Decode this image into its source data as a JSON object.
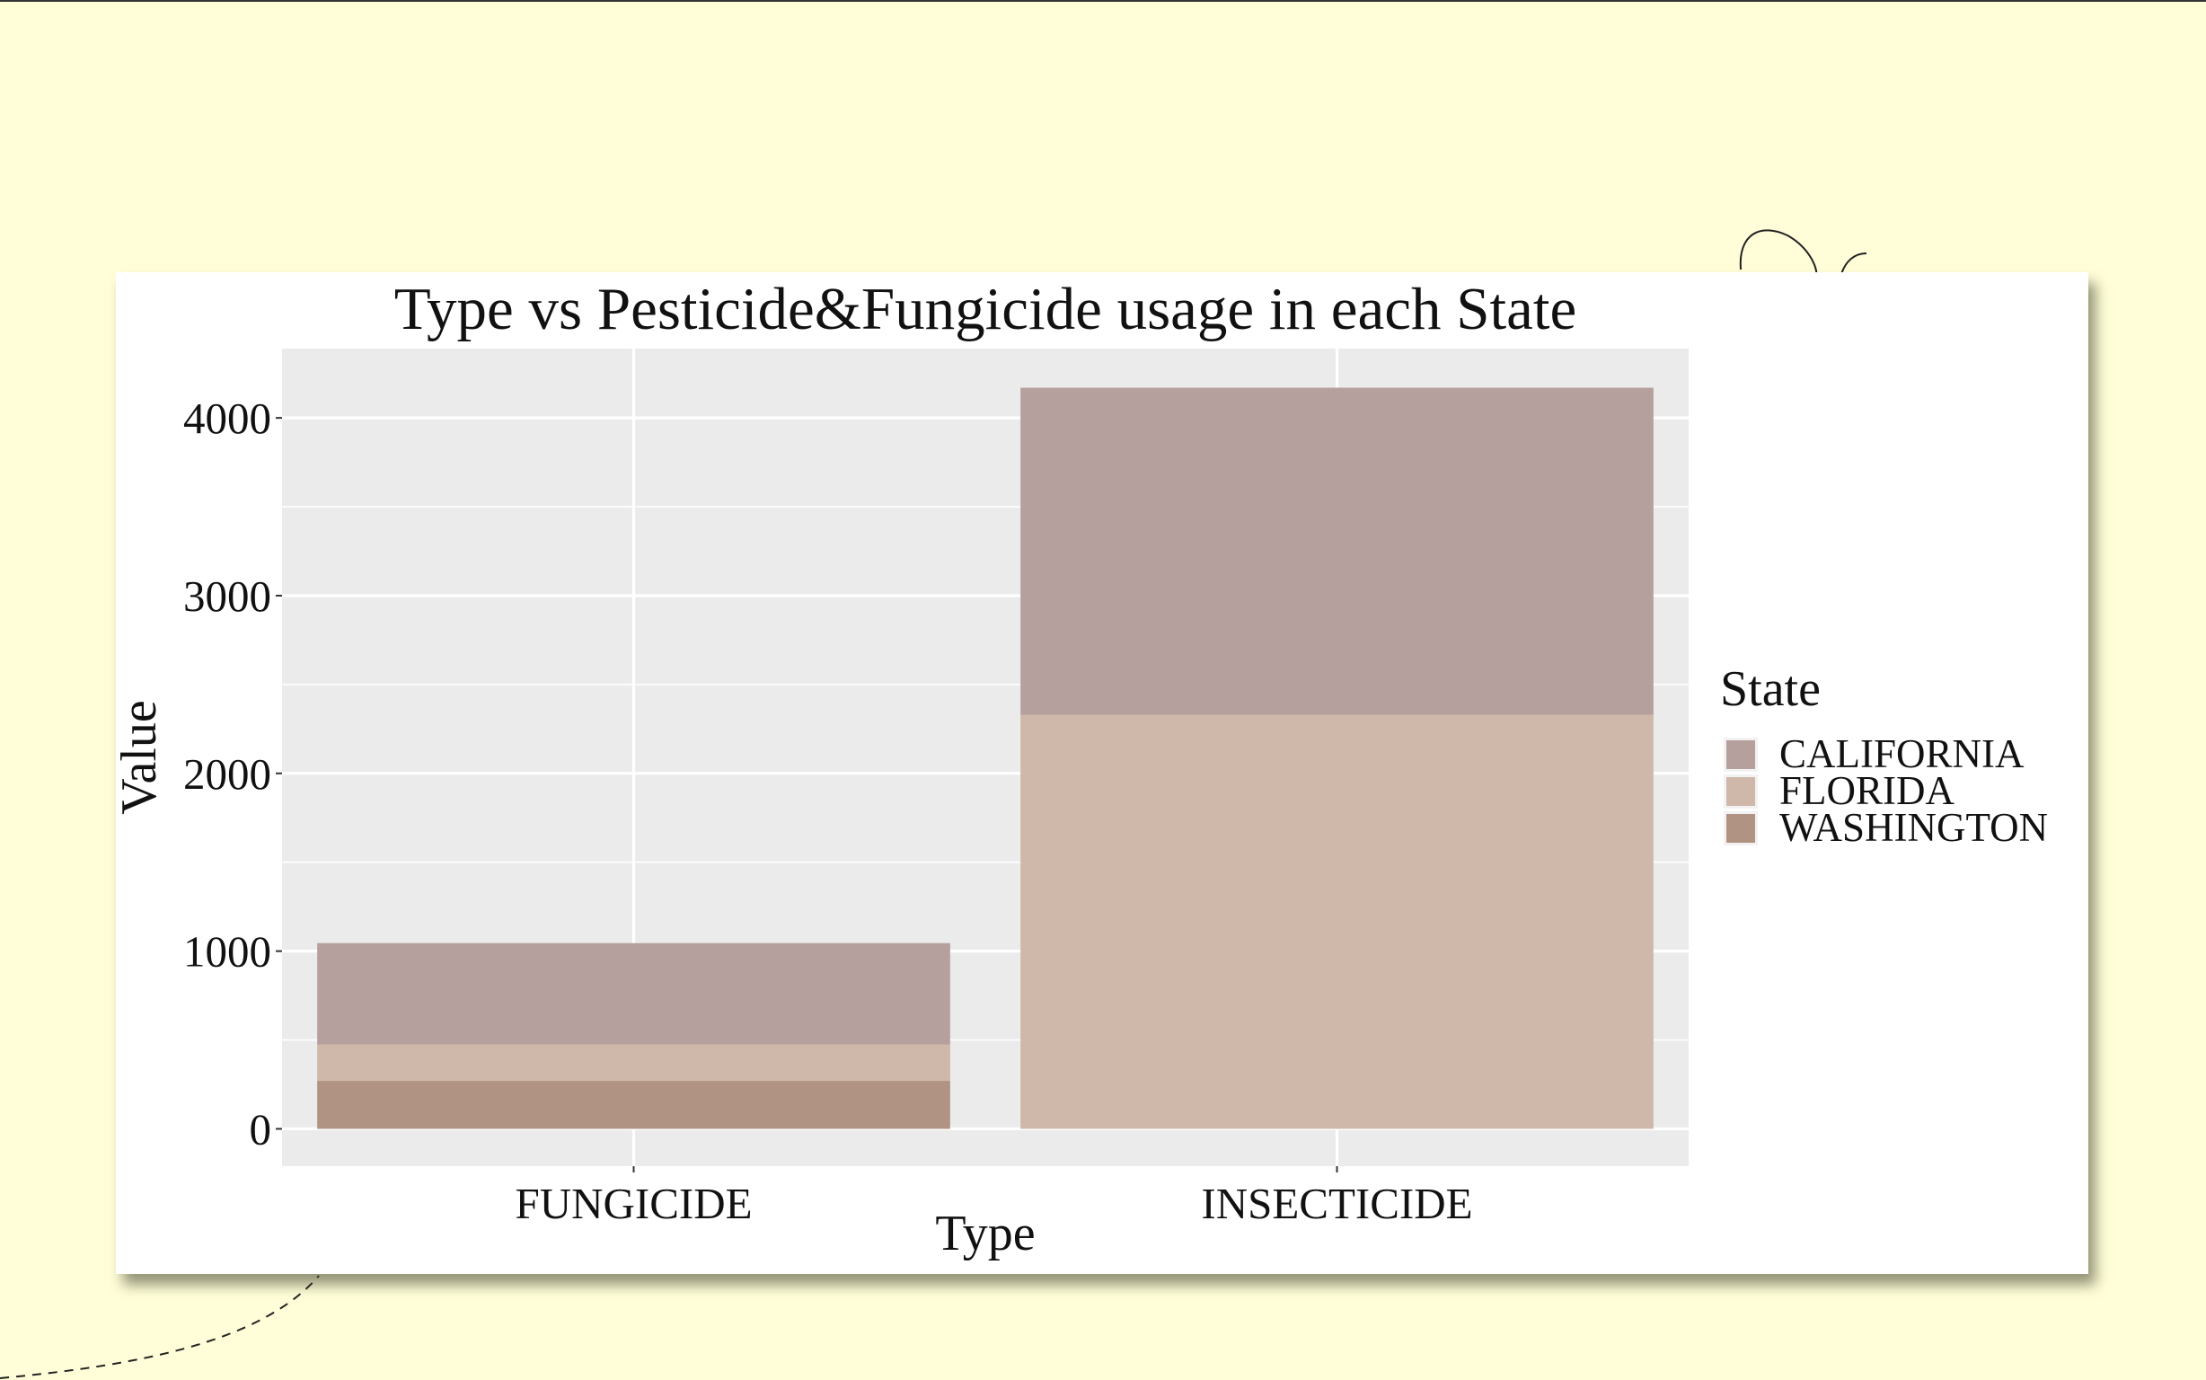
{
  "colors": {
    "background": "#fffed8",
    "panel": "#ebebeb",
    "grid": "#ffffff",
    "CALIFORNIA": "#b6a09e",
    "FLORIDA": "#cfb8aa",
    "WASHINGTON": "#b09383"
  },
  "chart_data": {
    "type": "bar",
    "stacked": true,
    "title": "Type vs Pesticide&Fungicide usage in each State",
    "xlabel": "Type",
    "ylabel": "Value",
    "categories": [
      "FUNGICIDE",
      "INSECTICIDE"
    ],
    "series": [
      {
        "name": "CALIFORNIA",
        "values": [
          570,
          1840
        ]
      },
      {
        "name": "FLORIDA",
        "values": [
          205,
          2330
        ]
      },
      {
        "name": "WASHINGTON",
        "values": [
          270,
          0
        ]
      }
    ],
    "yticks": [
      "0",
      "1000",
      "2000",
      "3000",
      "4000"
    ],
    "ylim": [
      -210,
      4390
    ],
    "grid": true,
    "legend": {
      "title": "State",
      "position": "right"
    }
  }
}
